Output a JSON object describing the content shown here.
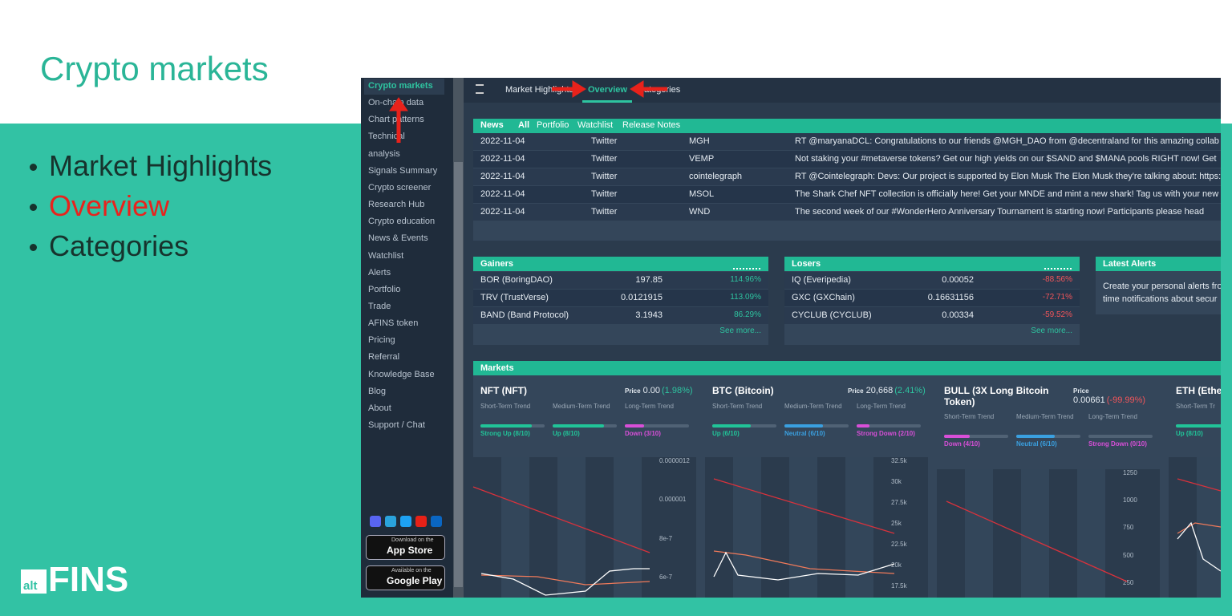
{
  "slide": {
    "title": "Crypto markets",
    "bullets": [
      "Market Highlights",
      "Overview",
      "Categories"
    ],
    "logo": {
      "small": "alt",
      "big": "FINS"
    }
  },
  "sidebar": {
    "items": [
      "Crypto markets",
      "On-chain data",
      "Chart patterns",
      "Technical",
      "analysis",
      "Signals Summary",
      "Crypto screener",
      "Research Hub",
      "Crypto education",
      "News & Events",
      "Watchlist",
      "Alerts",
      "Portfolio",
      "Trade",
      "AFINS token",
      "Pricing",
      "Referral",
      "Knowledge Base",
      "Blog",
      "About",
      "Support / Chat"
    ],
    "badges": [
      {
        "small": "Download on the",
        "big": "App Store"
      },
      {
        "small": "Available on the",
        "big": "Google Play"
      }
    ]
  },
  "topnav": {
    "tabs": [
      "Market Highlights",
      "Overview",
      "Categories"
    ]
  },
  "news": {
    "tabs": [
      "News",
      "All",
      "Portfolio",
      "Watchlist",
      "Release Notes"
    ],
    "rows": [
      [
        "2022-11-04",
        "Twitter",
        "MGH",
        "RT @maryanaDCL: Congratulations to our friends @MGH_DAO from @decentraland for this amazing collab wi"
      ],
      [
        "2022-11-04",
        "Twitter",
        "VEMP",
        "Not staking your #metaverse tokens? Get our high yields on our $SAND and $MANA pools RIGHT now! Get"
      ],
      [
        "2022-11-04",
        "Twitter",
        "cointelegraph",
        "RT @Cointelegraph: Devs: Our project is supported by Elon Musk The Elon Musk they're talking about: https://t."
      ],
      [
        "2022-11-04",
        "Twitter",
        "MSOL",
        "The Shark Chef NFT collection is officially here! Get your MNDE and mint a new shark! Tag us with your new"
      ],
      [
        "2022-11-04",
        "Twitter",
        "WND",
        "The second week of our #WonderHero Anniversary Tournament is starting now! Participants please head"
      ]
    ]
  },
  "gainers": {
    "title": "Gainers",
    "rows": [
      [
        "BOR (BoringDAO)",
        "197.85",
        "114.96%"
      ],
      [
        "TRV (TrustVerse)",
        "0.0121915",
        "113.09%"
      ],
      [
        "BAND (Band Protocol)",
        "3.1943",
        "86.29%"
      ]
    ],
    "see_more": "See more..."
  },
  "losers": {
    "title": "Losers",
    "rows": [
      [
        "IQ (Everipedia)",
        "0.00052",
        "-88.56%"
      ],
      [
        "GXC (GXChain)",
        "0.16631156",
        "-72.71%"
      ],
      [
        "CYCLUB (CYCLUB)",
        "0.00334",
        "-59.52%"
      ]
    ],
    "see_more": "See more..."
  },
  "alerts": {
    "title": "Latest Alerts",
    "lines": [
      "Create your personal alerts fro",
      "time notifications about secur"
    ]
  },
  "markets": {
    "title": "Markets",
    "price_label": "Price",
    "cards": [
      {
        "name": "NFT (NFT)",
        "price": "0.00",
        "change": "(1.98%)",
        "trends": [
          [
            "Short-Term Trend",
            "Strong Up (8/10)"
          ],
          [
            "Medium-Term Trend",
            "Up (8/10)"
          ],
          [
            "Long-Term Trend",
            "Down (3/10)"
          ]
        ],
        "axis": [
          "0.0000012",
          "0.000001",
          "8e-7",
          "6e-7"
        ]
      },
      {
        "name": "BTC (Bitcoin)",
        "price": "20,668",
        "change": "(2.41%)",
        "trends": [
          [
            "Short-Term Trend",
            "Up (6/10)"
          ],
          [
            "Medium-Term Trend",
            "Neutral (6/10)"
          ],
          [
            "Long-Term Trend",
            "Strong Down (2/10)"
          ]
        ],
        "axis": [
          "32.5k",
          "30k",
          "27.5k",
          "25k",
          "22.5k",
          "20k",
          "17.5k"
        ]
      },
      {
        "name": "BULL (3X Long Bitcoin Token)",
        "price": "0.00661",
        "change": "(-99.99%)",
        "trends": [
          [
            "Short-Term Trend",
            "Down (4/10)"
          ],
          [
            "Medium-Term Trend",
            "Neutral (6/10)"
          ],
          [
            "Long-Term Trend",
            "Strong Down (0/10)"
          ]
        ],
        "axis": [
          "1250",
          "1000",
          "750",
          "500",
          "250"
        ]
      },
      {
        "name": "ETH (Ethe",
        "trends": [
          [
            "Short-Term Tr",
            "Up (8/10)"
          ]
        ]
      }
    ]
  }
}
